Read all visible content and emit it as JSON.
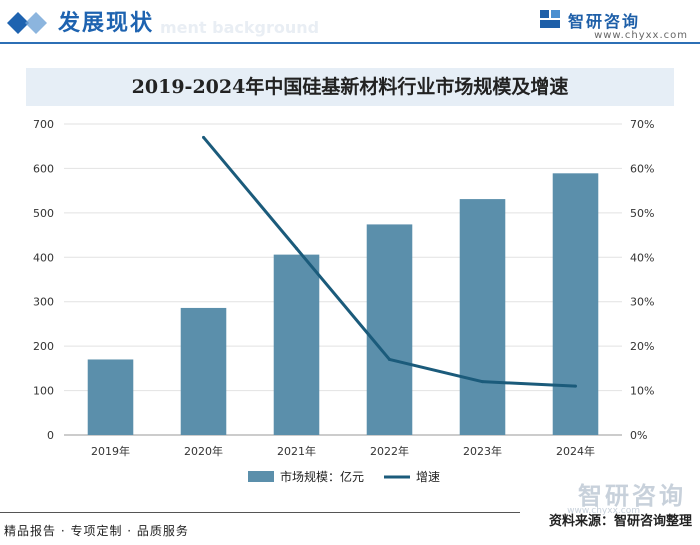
{
  "header": {
    "title": "发展现状",
    "subtitle": "ment background",
    "brand_name": "智研咨询",
    "brand_url": "www.chyxx.com",
    "accent_color": "#1e63b0"
  },
  "chart_data": {
    "type": "bar",
    "title": "2019-2024年中国硅基新材料行业市场规模及增速",
    "categories": [
      "2019年",
      "2020年",
      "2021年",
      "2022年",
      "2023年",
      "2024年"
    ],
    "series": [
      {
        "name": "市场规模：亿元",
        "kind": "bar",
        "axis": "left",
        "color": "#5b8fab",
        "values": [
          170,
          286,
          406,
          474,
          531,
          589
        ]
      },
      {
        "name": "增速",
        "kind": "line",
        "axis": "right",
        "color": "#1b5b7b",
        "values": [
          null,
          67,
          42,
          17,
          12,
          11
        ]
      }
    ],
    "y_left": {
      "min": 0,
      "max": 700,
      "ticks": [
        "0",
        "100",
        "200",
        "300",
        "400",
        "500",
        "600",
        "700"
      ]
    },
    "y_right": {
      "min": 0,
      "max": 70,
      "ticks": [
        "0%",
        "10%",
        "20%",
        "30%",
        "40%",
        "50%",
        "60%",
        "70%"
      ]
    },
    "grid": true,
    "legend_position": "bottom"
  },
  "footer": {
    "left": "精品报告 · 专项定制 · 品质服务",
    "right": "资料来源：智研咨询整理",
    "watermark_brand": "智研咨询",
    "watermark_url": "www.chyxx.com"
  }
}
